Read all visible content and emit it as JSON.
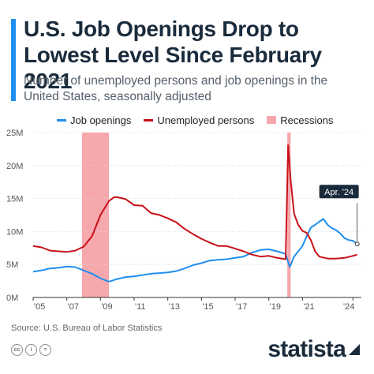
{
  "header": {
    "title": "U.S. Job Openings Drop to Lowest Level Since February 2021",
    "subtitle": "Number of unemployed persons and job openings in the United States, seasonally adjusted"
  },
  "legend": {
    "job_openings": "Job openings",
    "unemployed": "Unemployed persons",
    "recessions": "Recessions"
  },
  "colors": {
    "job_openings": "#1f8ff0",
    "unemployed": "#c8101a",
    "recessions": "#f7a8ad",
    "accent": "#1f8ff0"
  },
  "footer": {
    "source": "Source: U.S. Bureau of Labor Statistics",
    "brand": "statista"
  },
  "chart_data": {
    "type": "line",
    "title": "U.S. Job Openings Drop to Lowest Level Since February 2021",
    "xlim": [
      2005,
      2024.5
    ],
    "ylim": [
      0,
      25
    ],
    "ytick_labels": [
      "0M",
      "5M",
      "10M",
      "15M",
      "20M",
      "25M"
    ],
    "yticks": [
      0,
      5,
      10,
      15,
      20,
      25
    ],
    "xtick_labels": [
      "'05",
      "'07",
      "'09",
      "'11",
      "'13",
      "'15",
      "'17",
      "'19",
      "'21",
      "'24"
    ],
    "xticks": [
      2005,
      2007,
      2009,
      2011,
      2013,
      2015,
      2017,
      2019,
      2021,
      2024
    ],
    "grid": true,
    "legend_position": "top",
    "recessions": [
      [
        2007.9,
        2009.5
      ],
      [
        2020.1,
        2020.3
      ]
    ],
    "annotation": {
      "label": "Apr. '24",
      "x": 2024.25,
      "y": 8.1
    },
    "series": [
      {
        "name": "Job openings",
        "x": [
          2005.0,
          2005.5,
          2006.0,
          2006.5,
          2007.0,
          2007.5,
          2008.0,
          2008.5,
          2009.0,
          2009.5,
          2010.0,
          2010.5,
          2011.0,
          2011.5,
          2012.0,
          2012.5,
          2013.0,
          2013.5,
          2014.0,
          2014.5,
          2015.0,
          2015.5,
          2016.0,
          2016.5,
          2017.0,
          2017.5,
          2018.0,
          2018.5,
          2019.0,
          2019.5,
          2020.0,
          2020.25,
          2020.5,
          2021.0,
          2021.25,
          2021.5,
          2021.75,
          2022.0,
          2022.25,
          2022.5,
          2022.75,
          2023.0,
          2023.25,
          2023.5,
          2023.75,
          2024.0,
          2024.25
        ],
        "values": [
          3.9,
          4.1,
          4.4,
          4.5,
          4.7,
          4.6,
          4.1,
          3.6,
          2.9,
          2.4,
          2.8,
          3.1,
          3.2,
          3.4,
          3.6,
          3.7,
          3.8,
          4.0,
          4.4,
          4.9,
          5.2,
          5.6,
          5.7,
          5.8,
          6.0,
          6.2,
          6.8,
          7.2,
          7.3,
          7.0,
          6.6,
          4.6,
          6.2,
          7.8,
          9.3,
          10.6,
          11.0,
          11.5,
          11.9,
          11.0,
          10.5,
          10.2,
          9.7,
          9.0,
          8.7,
          8.6,
          8.1
        ]
      },
      {
        "name": "Unemployed persons",
        "x": [
          2005.0,
          2005.5,
          2006.0,
          2006.5,
          2007.0,
          2007.5,
          2008.0,
          2008.5,
          2009.0,
          2009.5,
          2009.8,
          2010.0,
          2010.5,
          2011.0,
          2011.5,
          2012.0,
          2012.5,
          2013.0,
          2013.5,
          2014.0,
          2014.5,
          2015.0,
          2015.5,
          2016.0,
          2016.5,
          2017.0,
          2017.5,
          2018.0,
          2018.5,
          2019.0,
          2019.5,
          2020.0,
          2020.15,
          2020.3,
          2020.5,
          2020.75,
          2021.0,
          2021.25,
          2021.5,
          2021.75,
          2022.0,
          2022.5,
          2023.0,
          2023.5,
          2024.0,
          2024.25
        ],
        "values": [
          7.8,
          7.6,
          7.1,
          7.0,
          6.9,
          7.1,
          7.7,
          9.3,
          12.5,
          14.6,
          15.2,
          15.2,
          14.9,
          14.0,
          13.9,
          12.8,
          12.5,
          12.0,
          11.4,
          10.4,
          9.6,
          8.9,
          8.3,
          7.8,
          7.8,
          7.4,
          7.0,
          6.5,
          6.2,
          6.3,
          6.0,
          5.8,
          23.1,
          17.8,
          12.7,
          11.0,
          10.1,
          9.8,
          8.7,
          7.0,
          6.2,
          5.9,
          5.9,
          6.0,
          6.3,
          6.5
        ]
      }
    ]
  }
}
